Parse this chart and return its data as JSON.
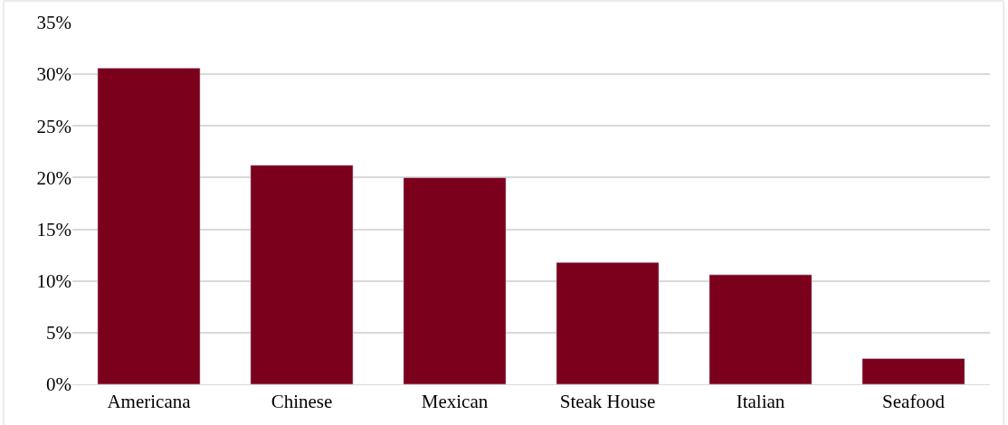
{
  "chart_data": {
    "type": "bar",
    "categories": [
      "Americana",
      "Chinese",
      "Mexican",
      "Steak House",
      "Italian",
      "Seafood"
    ],
    "values": [
      30.6,
      21.2,
      20.0,
      11.8,
      10.6,
      2.5
    ],
    "color": "#7b001c",
    "ylim": [
      0,
      35
    ],
    "yticks": [
      {
        "value": 0,
        "label": "0%"
      },
      {
        "value": 5,
        "label": "5%"
      },
      {
        "value": 10,
        "label": "10%"
      },
      {
        "value": 15,
        "label": "15%"
      },
      {
        "value": 20,
        "label": "20%"
      },
      {
        "value": 25,
        "label": "25%"
      },
      {
        "value": 30,
        "label": "30%"
      },
      {
        "value": 35,
        "label": "35%"
      }
    ],
    "grid": "y"
  }
}
